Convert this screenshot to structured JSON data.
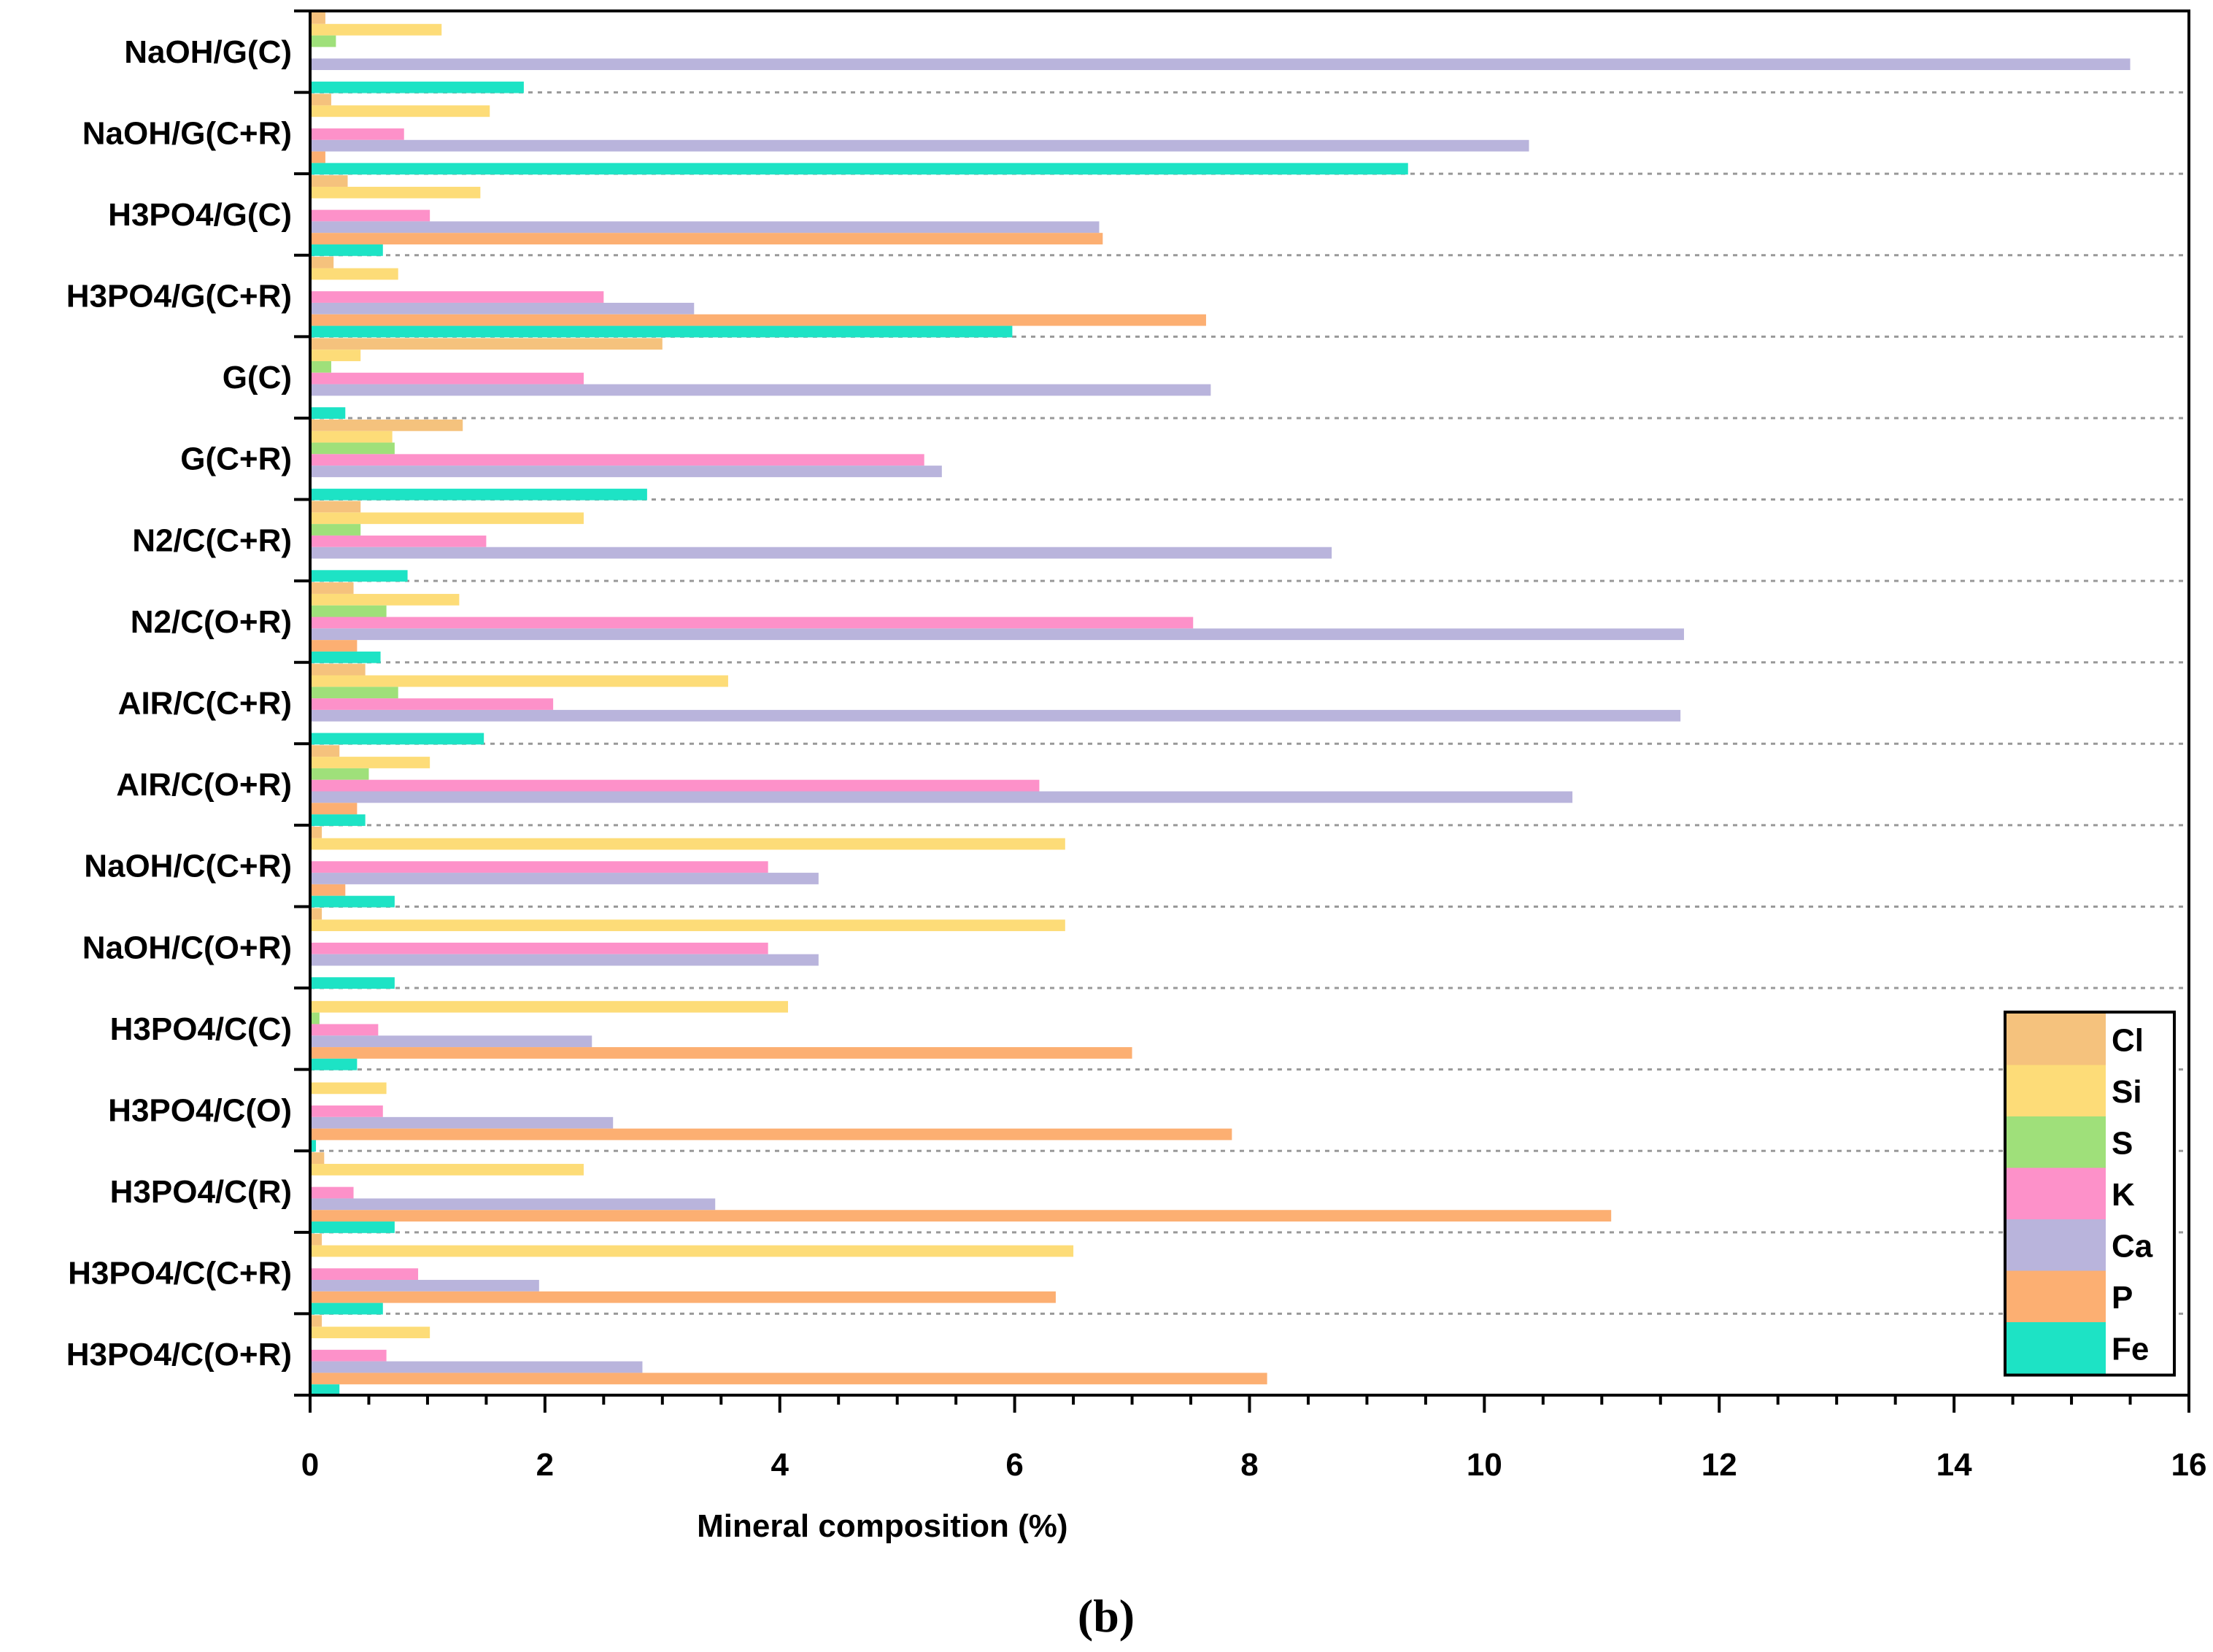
{
  "chart_data": {
    "type": "bar",
    "orientation": "horizontal",
    "xlabel": "Mineral composition (%)",
    "xlim": [
      0,
      16
    ],
    "xticks": [
      0,
      2,
      4,
      6,
      8,
      10,
      12,
      14,
      16
    ],
    "legend_position": "bottom-right",
    "caption": "(b)",
    "grid": "dotted horizontal separators between categories",
    "categories": [
      "NaOH/G(C)",
      "NaOH/G(C+R)",
      "H3PO4/G(C)",
      "H3PO4/G(C+R)",
      "G(C)",
      "G(C+R)",
      "N2/C(C+R)",
      "N2/C(O+R)",
      "AIR/C(C+R)",
      "AIR/C(O+R)",
      "NaOH/C(C+R)",
      "NaOH/C(O+R)",
      "H3PO4/C(C)",
      "H3PO4/C(O)",
      "H3PO4/C(R)",
      "H3PO4/C(C+R)",
      "H3PO4/C(O+R)"
    ],
    "series": [
      {
        "name": "Cl",
        "color": "#f5c27d",
        "values": [
          0.13,
          0.18,
          0.32,
          0.2,
          3.0,
          1.3,
          0.43,
          0.37,
          0.47,
          0.25,
          0.1,
          0.1,
          0.0,
          0.0,
          0.12,
          0.1,
          0.1
        ]
      },
      {
        "name": "Si",
        "color": "#fddc78",
        "values": [
          1.12,
          1.53,
          1.45,
          0.75,
          0.43,
          0.7,
          2.33,
          1.27,
          3.56,
          1.02,
          6.43,
          6.43,
          4.07,
          0.65,
          2.33,
          6.5,
          1.02
        ]
      },
      {
        "name": "S",
        "color": "#9fe07a",
        "values": [
          0.22,
          0.0,
          0.0,
          0.0,
          0.18,
          0.72,
          0.43,
          0.65,
          0.75,
          0.5,
          0.0,
          0.0,
          0.08,
          0.0,
          0.0,
          0.0,
          0.0
        ]
      },
      {
        "name": "K",
        "color": "#fd91c9",
        "values": [
          0.0,
          0.8,
          1.02,
          2.5,
          2.33,
          5.23,
          1.5,
          7.52,
          2.07,
          6.21,
          3.9,
          3.9,
          0.58,
          0.62,
          0.37,
          0.92,
          0.65
        ]
      },
      {
        "name": "Ca",
        "color": "#b9b4dc",
        "values": [
          15.5,
          10.38,
          6.72,
          3.27,
          7.67,
          5.38,
          8.7,
          11.7,
          11.67,
          10.75,
          4.33,
          4.33,
          2.4,
          2.58,
          3.45,
          1.95,
          2.83
        ]
      },
      {
        "name": "P",
        "color": "#fcaf72",
        "values": [
          0.0,
          0.13,
          6.75,
          7.63,
          0.0,
          0.0,
          0.0,
          0.4,
          0.0,
          0.4,
          0.3,
          0.0,
          7.0,
          7.85,
          11.08,
          6.35,
          8.15
        ]
      },
      {
        "name": "Fe",
        "color": "#1de3c5",
        "values": [
          1.82,
          9.35,
          0.62,
          5.98,
          0.3,
          2.87,
          0.83,
          0.6,
          1.48,
          0.47,
          0.72,
          0.72,
          0.4,
          0.05,
          0.72,
          0.62,
          0.25
        ]
      }
    ]
  }
}
